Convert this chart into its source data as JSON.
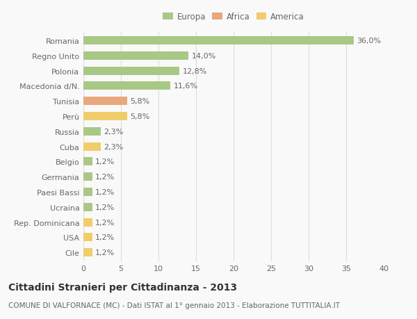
{
  "categories": [
    "Romania",
    "Regno Unito",
    "Polonia",
    "Macedonia d/N.",
    "Tunisia",
    "Perù",
    "Russia",
    "Cuba",
    "Belgio",
    "Germania",
    "Paesi Bassi",
    "Ucraina",
    "Rep. Dominicana",
    "USA",
    "Cile"
  ],
  "values": [
    36.0,
    14.0,
    12.8,
    11.6,
    5.8,
    5.8,
    2.3,
    2.3,
    1.2,
    1.2,
    1.2,
    1.2,
    1.2,
    1.2,
    1.2
  ],
  "labels": [
    "36,0%",
    "14,0%",
    "12,8%",
    "11,6%",
    "5,8%",
    "5,8%",
    "2,3%",
    "2,3%",
    "1,2%",
    "1,2%",
    "1,2%",
    "1,2%",
    "1,2%",
    "1,2%",
    "1,2%"
  ],
  "continents": [
    "Europa",
    "Europa",
    "Europa",
    "Europa",
    "Africa",
    "America",
    "Europa",
    "America",
    "Europa",
    "Europa",
    "Europa",
    "Europa",
    "America",
    "America",
    "America"
  ],
  "continent_colors": {
    "Europa": "#a8c885",
    "Africa": "#e8a87c",
    "America": "#f0cc6a"
  },
  "legend_order": [
    "Europa",
    "Africa",
    "America"
  ],
  "title": "Cittadini Stranieri per Cittadinanza - 2013",
  "subtitle": "COMUNE DI VALFORNACE (MC) - Dati ISTAT al 1° gennaio 2013 - Elaborazione TUTTITALIA.IT",
  "xlim": [
    0,
    40
  ],
  "xticks": [
    0,
    5,
    10,
    15,
    20,
    25,
    30,
    35,
    40
  ],
  "background_color": "#f9f9f9",
  "grid_color": "#dddddd",
  "bar_height": 0.55,
  "title_fontsize": 10,
  "subtitle_fontsize": 7.5,
  "label_fontsize": 8,
  "tick_fontsize": 8,
  "legend_fontsize": 8.5
}
